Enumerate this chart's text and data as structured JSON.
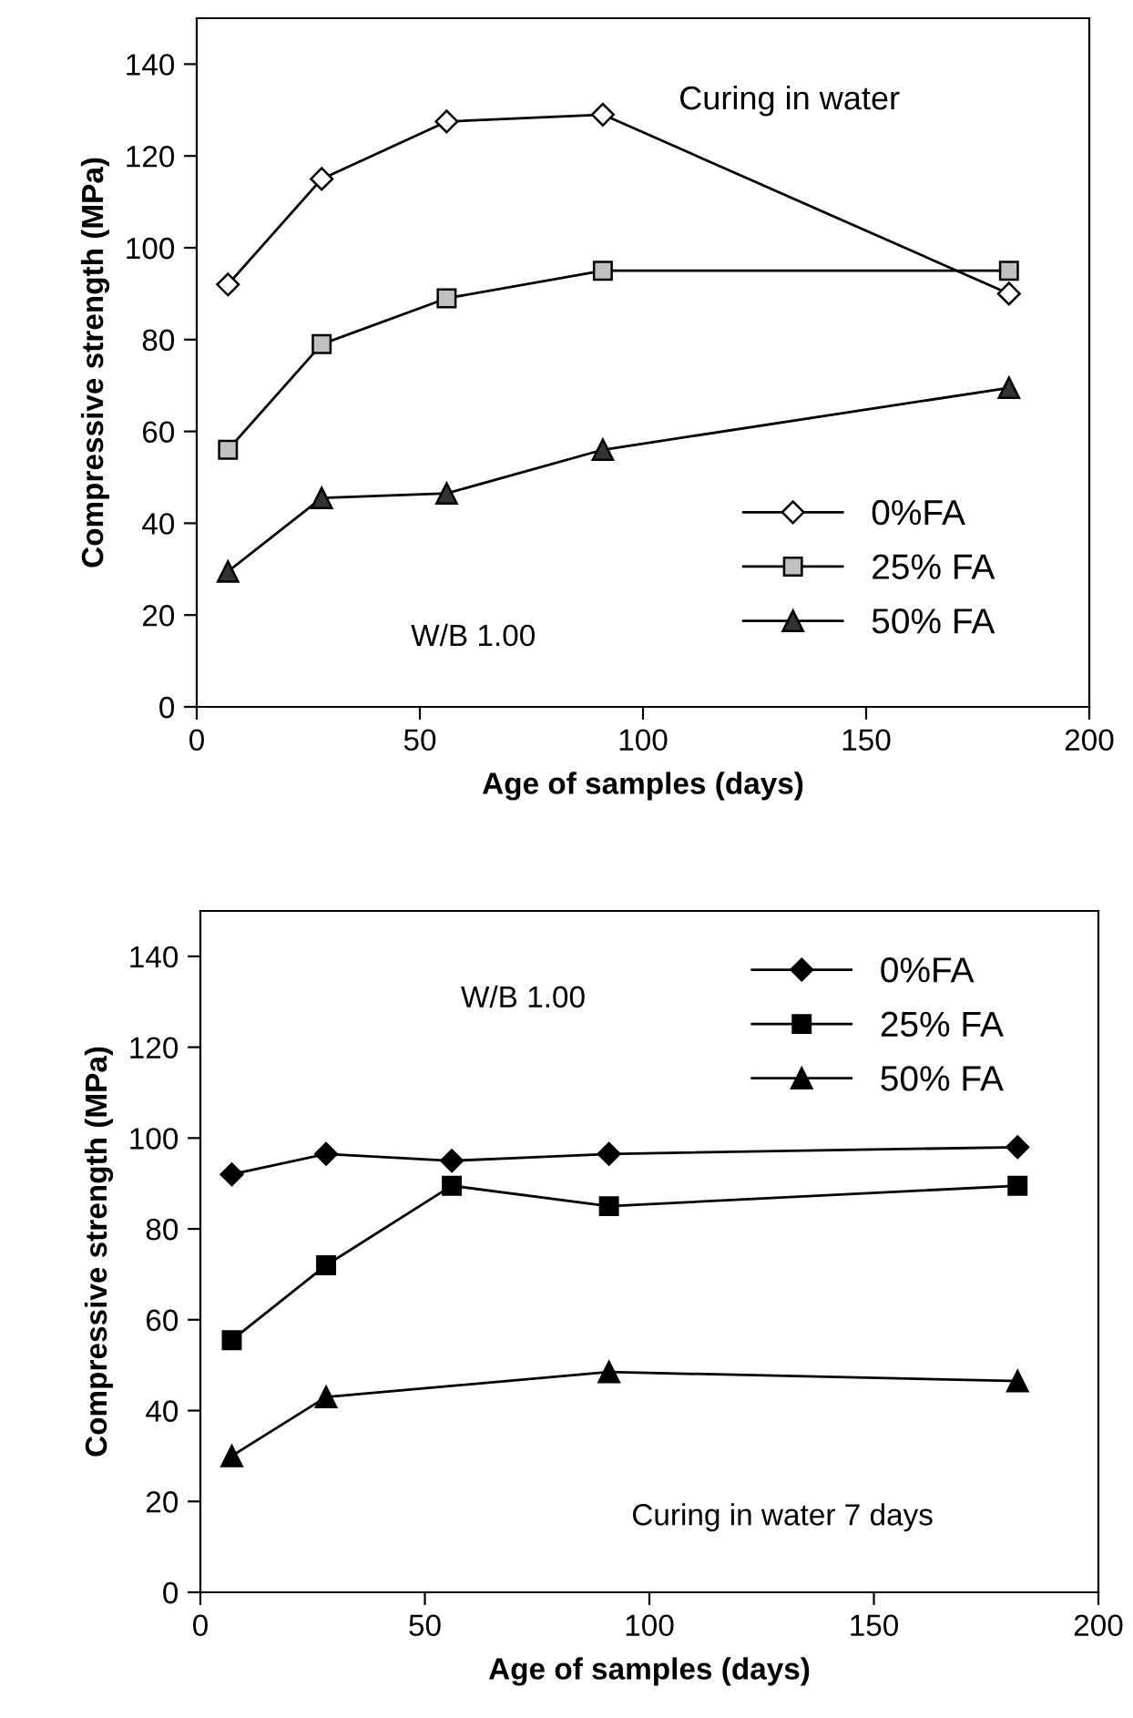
{
  "chart_data": [
    {
      "type": "line",
      "xlabel": "Age of samples (days)",
      "ylabel": "Compressive strength (MPa)",
      "annotations": [
        "Curing in water",
        "W/B 1.00"
      ],
      "x": [
        7,
        28,
        56,
        91,
        182
      ],
      "xlim": [
        0,
        200
      ],
      "ylim": [
        0,
        150
      ],
      "xticks": [
        0,
        50,
        100,
        150,
        200
      ],
      "yticks": [
        0,
        20,
        40,
        60,
        80,
        100,
        120,
        140
      ],
      "grid": false,
      "legend": "bottom right",
      "line_style": "solid",
      "series": [
        {
          "name": "0%FA",
          "color": "#ffffff",
          "marker": "diamond",
          "values": [
            92,
            115,
            127.5,
            129,
            90
          ]
        },
        {
          "name": "25% FA",
          "color": "#c0c0c0",
          "marker": "square",
          "values": [
            56,
            79,
            89,
            95,
            95
          ]
        },
        {
          "name": "50% FA",
          "color": "#333333",
          "marker": "triangle",
          "values": [
            29.5,
            45.5,
            46.5,
            56,
            69.5
          ]
        }
      ]
    },
    {
      "type": "line",
      "xlabel": "Age of samples (days)",
      "ylabel": "Compressive strength (MPa)",
      "annotations": [
        "W/B 1.00",
        "Curing in water 7 days"
      ],
      "x": [
        7,
        28,
        56,
        91,
        182
      ],
      "xlim": [
        0,
        200
      ],
      "ylim": [
        0,
        150
      ],
      "xticks": [
        0,
        50,
        100,
        150,
        200
      ],
      "yticks": [
        0,
        20,
        40,
        60,
        80,
        100,
        120,
        140
      ],
      "grid": false,
      "legend": "top right",
      "line_style": "solid",
      "series": [
        {
          "name": "0%FA",
          "color": "#000000",
          "marker": "diamond",
          "values": [
            92,
            96.5,
            95,
            96.5,
            98
          ]
        },
        {
          "name": "25% FA",
          "color": "#000000",
          "marker": "square",
          "values": [
            55.5,
            72,
            89.5,
            85,
            89.5
          ]
        },
        {
          "name": "50% FA",
          "color": "#000000",
          "marker": "triangle",
          "x": [
            7,
            28,
            91,
            182
          ],
          "values": [
            30,
            43,
            48.5,
            46.5
          ]
        }
      ]
    }
  ]
}
